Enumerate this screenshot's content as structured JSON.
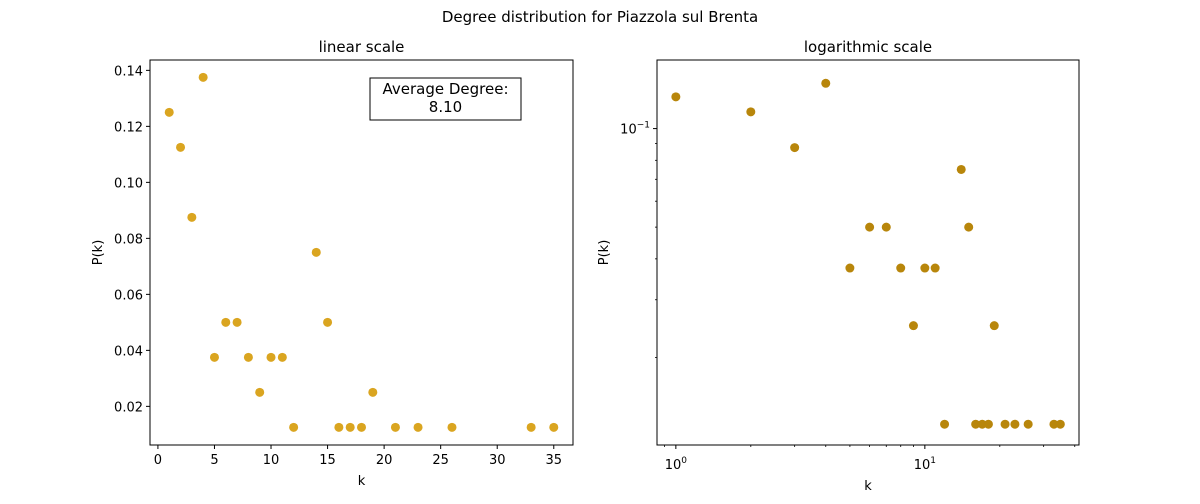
{
  "suptitle": "Degree distribution for Piazzola sul Brenta",
  "chart_data": [
    {
      "type": "scatter",
      "title": "linear scale",
      "xlabel": "k",
      "ylabel": "P(k)",
      "xscale": "linear",
      "yscale": "linear",
      "xlim": [
        -0.7,
        36.7
      ],
      "ylim": [
        0.0062,
        0.1437
      ],
      "xticks": [
        0,
        5,
        10,
        15,
        20,
        25,
        30,
        35
      ],
      "xtick_labels": [
        "0",
        "5",
        "10",
        "15",
        "20",
        "25",
        "30",
        "35"
      ],
      "yticks": [
        0.02,
        0.04,
        0.06,
        0.08,
        0.1,
        0.12,
        0.14
      ],
      "ytick_labels": [
        "0.02",
        "0.04",
        "0.06",
        "0.08",
        "0.10",
        "0.12",
        "0.14"
      ],
      "grid": false,
      "marker_color": "#DAA520",
      "annotation": {
        "line1": "Average Degree:",
        "line2": "8.10"
      },
      "series": [
        {
          "x": [
            1,
            2,
            3,
            4,
            5,
            6,
            7,
            8,
            9,
            10,
            11,
            12,
            14,
            15,
            16,
            17,
            18,
            19,
            21,
            23,
            26,
            33,
            35
          ],
          "y": [
            0.125,
            0.1125,
            0.0875,
            0.1375,
            0.0375,
            0.05,
            0.05,
            0.0375,
            0.025,
            0.0375,
            0.0375,
            0.0125,
            0.075,
            0.05,
            0.0125,
            0.0125,
            0.0125,
            0.025,
            0.0125,
            0.0125,
            0.0125,
            0.0125,
            0.0125
          ]
        }
      ]
    },
    {
      "type": "scatter",
      "title": "logarithmic scale",
      "xlabel": "k",
      "ylabel": "P(k)",
      "xscale": "log",
      "yscale": "log",
      "xlim": [
        0.84,
        41.6
      ],
      "ylim": [
        0.0108,
        0.162
      ],
      "xticks": [
        1,
        10
      ],
      "xtick_labels": [
        "10^0",
        "10^1"
      ],
      "xtick_display": [
        {
          "base": "10",
          "exp": "0"
        },
        {
          "base": "10",
          "exp": "1"
        }
      ],
      "yticks": [
        0.1
      ],
      "ytick_labels": [
        "10^-1"
      ],
      "ytick_display": [
        {
          "base": "10",
          "exp": "−1"
        }
      ],
      "grid": false,
      "marker_color": "#B8860B",
      "series": [
        {
          "x": [
            1,
            2,
            3,
            4,
            5,
            6,
            7,
            8,
            9,
            10,
            11,
            12,
            14,
            15,
            16,
            17,
            18,
            19,
            21,
            23,
            26,
            33,
            35
          ],
          "y": [
            0.125,
            0.1125,
            0.0875,
            0.1375,
            0.0375,
            0.05,
            0.05,
            0.0375,
            0.025,
            0.0375,
            0.0375,
            0.0125,
            0.075,
            0.05,
            0.0125,
            0.0125,
            0.0125,
            0.025,
            0.0125,
            0.0125,
            0.0125,
            0.0125,
            0.0125
          ]
        }
      ]
    }
  ]
}
